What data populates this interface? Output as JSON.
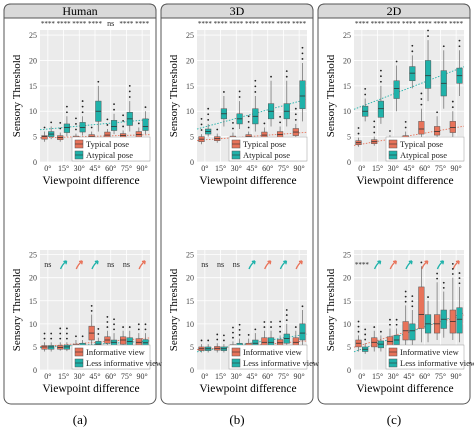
{
  "colors": {
    "typical": "#e8735a",
    "atypical": "#20b2aa",
    "panel_bg": "#ebebeb",
    "grid": "#ffffff",
    "frame": "#555555",
    "sig_arrow_red": "#e8735a",
    "sig_arrow_teal": "#20b2aa"
  },
  "figure": {
    "columns": [
      {
        "title": "Human",
        "caption": "(a)"
      },
      {
        "title": "3D",
        "caption": "(b)"
      },
      {
        "title": "2D",
        "caption": "(c)"
      }
    ],
    "ylabel": "Sensory Threshold",
    "xlabel": "Viewpoint difference"
  },
  "chart_data": [
    {
      "id": "human-pose",
      "type": "box",
      "column": 0,
      "row": 0,
      "xlabel": "Viewpoint difference",
      "ylabel": "Sensory Threshold",
      "categories": [
        "0°",
        "15°",
        "30°",
        "45°",
        "60°",
        "75°",
        "90°"
      ],
      "yticks": [
        0,
        5,
        10,
        15,
        20,
        25
      ],
      "ylim": [
        0,
        26
      ],
      "legend": {
        "position": "bottom-right",
        "entries": [
          "Typical pose",
          "Atypical pose"
        ]
      },
      "significance": [
        "****",
        "****",
        "****",
        "****",
        "ns",
        "****",
        "****"
      ],
      "series": [
        {
          "name": "Typical pose",
          "color_key": "typical",
          "boxes": [
            [
              4,
              4.5,
              5,
              5.2,
              6
            ],
            [
              4,
              4.4,
              4.8,
              5.2,
              5.8
            ],
            [
              4.2,
              4.5,
              4.8,
              5.1,
              5.6
            ],
            [
              4.3,
              4.6,
              5,
              5.4,
              6
            ],
            [
              4.4,
              4.8,
              5.3,
              5.9,
              6.5
            ],
            [
              4.2,
              4.7,
              5.2,
              5.6,
              6.2
            ],
            [
              4.3,
              4.9,
              5.4,
              6,
              6.8
            ]
          ]
        },
        {
          "name": "Atypical pose",
          "color_key": "atypical",
          "boxes": [
            [
              4.5,
              5,
              5.5,
              6,
              7
            ],
            [
              5,
              5.8,
              6.8,
              7.5,
              9
            ],
            [
              5.2,
              5.9,
              6.8,
              7.8,
              9
            ],
            [
              6,
              8,
              10,
              12,
              15
            ],
            [
              5.5,
              6.2,
              7,
              8.2,
              9.5
            ],
            [
              6,
              7.2,
              8.5,
              9.8,
              12
            ],
            [
              5.5,
              6.2,
              7,
              8.5,
              10
            ]
          ]
        }
      ]
    },
    {
      "id": "human-view",
      "type": "box",
      "column": 0,
      "row": 1,
      "xlabel": "Viewpoint difference",
      "ylabel": "Sensory Threshold",
      "categories": [
        "0°",
        "15°",
        "30°",
        "45°",
        "60°",
        "75°",
        "90°"
      ],
      "yticks": [
        0,
        5,
        10,
        15,
        20,
        25
      ],
      "ylim": [
        0,
        26
      ],
      "legend": {
        "position": "bottom-right",
        "entries": [
          "Informative view",
          "Less informative view"
        ]
      },
      "significance": [
        "ns",
        "↗",
        "↗",
        "↗",
        "ns",
        "ns",
        "↗"
      ],
      "series": [
        {
          "name": "Informative view",
          "color_key": "typical",
          "boxes": [
            [
              4,
              4.5,
              5,
              5.3,
              6
            ],
            [
              4.2,
              4.5,
              4.9,
              5.3,
              6
            ],
            [
              4.3,
              4.7,
              5.1,
              5.6,
              6.5
            ],
            [
              5,
              6.5,
              8,
              9.5,
              12
            ],
            [
              5,
              5.8,
              6.5,
              7.2,
              8.5
            ],
            [
              4.8,
              5.6,
              6.5,
              7.2,
              8.5
            ],
            [
              4.5,
              5.2,
              6,
              6.8,
              8
            ]
          ]
        },
        {
          "name": "Less informative view",
          "color_key": "atypical",
          "boxes": [
            [
              4,
              4.5,
              5,
              5.3,
              6
            ],
            [
              4.1,
              4.5,
              5,
              5.4,
              6
            ],
            [
              4.3,
              4.8,
              5.3,
              5.8,
              6.5
            ],
            [
              4.5,
              5,
              5.6,
              6.2,
              7
            ],
            [
              4.5,
              5.2,
              6,
              6.5,
              8
            ],
            [
              4.5,
              5.3,
              6.2,
              7,
              8.5
            ],
            [
              4.5,
              5.2,
              5.9,
              6.6,
              8
            ]
          ]
        }
      ]
    },
    {
      "id": "3d-pose",
      "type": "box",
      "column": 1,
      "row": 0,
      "xlabel": "Viewpoint difference",
      "ylabel": "Sensory Threshold",
      "categories": [
        "0°",
        "15°",
        "30°",
        "45°",
        "60°",
        "75°",
        "90°"
      ],
      "yticks": [
        0,
        5,
        10,
        15,
        20,
        25
      ],
      "ylim": [
        0,
        26
      ],
      "legend": {
        "position": "bottom-right",
        "entries": [
          "Typical pose",
          "Atypical pose"
        ]
      },
      "significance": [
        "****",
        "****",
        "****",
        "****",
        "****",
        "****",
        "****"
      ],
      "series": [
        {
          "name": "Typical pose",
          "color_key": "typical",
          "boxes": [
            [
              3.5,
              4,
              4.5,
              5,
              5.5
            ],
            [
              3.8,
              4.2,
              4.6,
              5,
              5.6
            ],
            [
              3.9,
              4.3,
              4.7,
              5.1,
              5.8
            ],
            [
              4,
              4.5,
              5,
              5.4,
              6
            ],
            [
              4.2,
              4.8,
              5.3,
              5.9,
              6.8
            ],
            [
              4.2,
              4.8,
              5.4,
              6,
              7
            ],
            [
              4.5,
              5.2,
              5.9,
              6.6,
              7.5
            ]
          ]
        },
        {
          "name": "Atypical pose",
          "color_key": "atypical",
          "boxes": [
            [
              5,
              5.5,
              6,
              6.5,
              7.5
            ],
            [
              7,
              8.5,
              9.5,
              10.5,
              13
            ],
            [
              6.5,
              7.5,
              8.5,
              9.5,
              12
            ],
            [
              6,
              7.5,
              9,
              10.5,
              13
            ],
            [
              7,
              8.5,
              10,
              11.5,
              16
            ],
            [
              7,
              8.5,
              10,
              11.5,
              16
            ],
            [
              8,
              10.5,
              13,
              16,
              19.5
            ]
          ]
        }
      ]
    },
    {
      "id": "3d-view",
      "type": "box",
      "column": 1,
      "row": 1,
      "xlabel": "Viewpoint difference",
      "ylabel": "Sensory Threshold",
      "categories": [
        "0°",
        "15°",
        "30°",
        "45°",
        "60°",
        "75°",
        "90°"
      ],
      "yticks": [
        0,
        5,
        10,
        15,
        20,
        25
      ],
      "ylim": [
        0,
        26
      ],
      "legend": {
        "position": "bottom-right",
        "entries": [
          "Informative view",
          "Less informative view"
        ]
      },
      "significance": [
        "ns",
        "ns",
        "ns",
        "↗",
        "↗",
        "↗",
        "↗"
      ],
      "series": [
        {
          "name": "Informative view",
          "color_key": "typical",
          "boxes": [
            [
              3.8,
              4.2,
              4.6,
              5,
              5.6
            ],
            [
              3.8,
              4.3,
              4.7,
              5.1,
              5.8
            ],
            [
              4,
              4.5,
              5,
              5.5,
              6.2
            ],
            [
              4.2,
              4.7,
              5.2,
              5.8,
              6.8
            ],
            [
              4.5,
              5.2,
              6,
              7,
              8.5
            ],
            [
              4.5,
              5.2,
              5.9,
              6.6,
              7.5
            ],
            [
              4.5,
              5.2,
              6,
              7,
              8.5
            ]
          ]
        },
        {
          "name": "Less informative view",
          "color_key": "atypical",
          "boxes": [
            [
              3.8,
              4.2,
              4.6,
              5,
              5.6
            ],
            [
              3.8,
              4.2,
              4.6,
              5,
              5.6
            ],
            [
              4.2,
              4.7,
              5.2,
              5.8,
              6.8
            ],
            [
              4.2,
              5,
              5.8,
              6.5,
              8
            ],
            [
              4.5,
              5.2,
              6,
              7,
              8.5
            ],
            [
              4.8,
              5.8,
              6.8,
              7.8,
              10
            ],
            [
              5,
              6.5,
              8,
              10,
              13
            ]
          ]
        }
      ]
    },
    {
      "id": "2d-pose",
      "type": "box",
      "column": 2,
      "row": 0,
      "xlabel": "Viewpoint difference",
      "ylabel": "Sensory Threshold",
      "categories": [
        "0°",
        "15°",
        "30°",
        "45°",
        "60°",
        "75°",
        "90°"
      ],
      "yticks": [
        0,
        5,
        10,
        15,
        20,
        25
      ],
      "ylim": [
        0,
        26
      ],
      "legend": {
        "position": "bottom-right",
        "entries": [
          "Typical pose",
          "Atypical pose"
        ]
      },
      "significance": [
        "****",
        "****",
        "****",
        "****",
        "****",
        "****",
        "****"
      ],
      "series": [
        {
          "name": "Typical pose",
          "color_key": "typical",
          "boxes": [
            [
              3,
              3.4,
              3.8,
              4.2,
              4.8
            ],
            [
              3.2,
              3.6,
              4,
              4.4,
              5
            ],
            [
              3.5,
              3.9,
              4.3,
              4.7,
              5.3
            ],
            [
              3.7,
              4.2,
              4.7,
              5.2,
              6
            ],
            [
              4.5,
              5.5,
              6.5,
              8,
              10.5
            ],
            [
              4.5,
              5.3,
              6,
              7,
              9
            ],
            [
              4.8,
              5.8,
              6.8,
              8,
              10
            ]
          ]
        },
        {
          "name": "Atypical pose",
          "color_key": "atypical",
          "boxes": [
            [
              8,
              9,
              10,
              11,
              12.5
            ],
            [
              7.5,
              8.8,
              10.5,
              12,
              15
            ],
            [
              10,
              12.5,
              14.5,
              16,
              19
            ],
            [
              14.5,
              16,
              17.5,
              18.8,
              21
            ],
            [
              12,
              14.5,
              17,
              20,
              24
            ],
            [
              10.5,
              13,
              15.5,
              18,
              22
            ],
            [
              13,
              15.5,
              17,
              18.5,
              22
            ]
          ]
        }
      ]
    },
    {
      "id": "2d-view",
      "type": "box",
      "column": 2,
      "row": 1,
      "xlabel": "Viewpoint difference",
      "ylabel": "Sensory Threshold",
      "categories": [
        "0°",
        "15°",
        "30°",
        "45°",
        "60°",
        "75°",
        "90°"
      ],
      "yticks": [
        0,
        5,
        10,
        15,
        20,
        25
      ],
      "ylim": [
        0,
        26
      ],
      "legend": {
        "position": "bottom-right",
        "entries": [
          "Informative view",
          "Less informative view"
        ]
      },
      "significance": [
        "****",
        "↗",
        "↗",
        "↗",
        "↗",
        "↗",
        "↗"
      ],
      "series": [
        {
          "name": "Informative view",
          "color_key": "typical",
          "boxes": [
            [
              4,
              5,
              5.8,
              6.5,
              7.5
            ],
            [
              4,
              5,
              6,
              7,
              8.5
            ],
            [
              4.2,
              5.2,
              6.2,
              7.2,
              9
            ],
            [
              5,
              6.5,
              8.5,
              10.5,
              14
            ],
            [
              6,
              9,
              12,
              18,
              22.5
            ],
            [
              6.5,
              8,
              10,
              12,
              19
            ],
            [
              6.5,
              8,
              10.5,
              13,
              20
            ]
          ]
        },
        {
          "name": "Less informative view",
          "color_key": "atypical",
          "boxes": [
            [
              3.5,
              4,
              4.5,
              5,
              5.8
            ],
            [
              4,
              4.8,
              5.6,
              6.3,
              7.5
            ],
            [
              4.5,
              5.5,
              6.5,
              7.5,
              9
            ],
            [
              5,
              6.5,
              8.5,
              10,
              13
            ],
            [
              6,
              8,
              10,
              12,
              15
            ],
            [
              7,
              9,
              11,
              13,
              17
            ],
            [
              6,
              8,
              11,
              13.5,
              18
            ]
          ]
        }
      ]
    }
  ]
}
